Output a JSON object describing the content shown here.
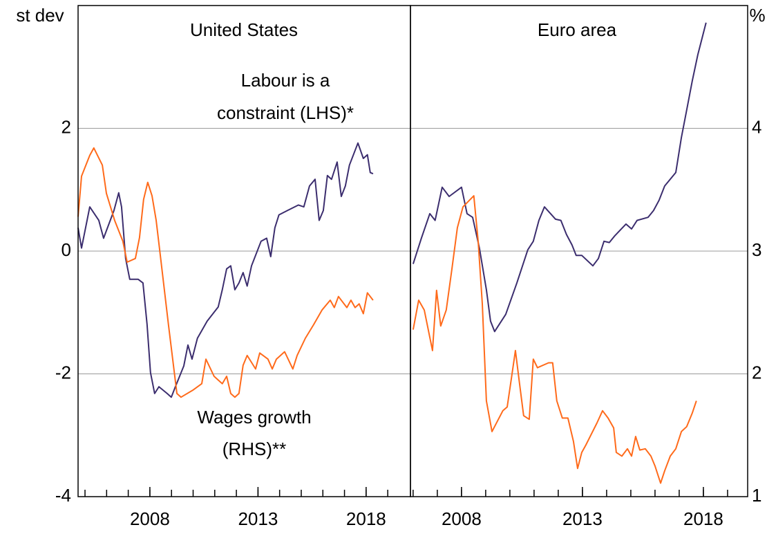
{
  "chart_data": [
    {
      "type": "line",
      "title": "United States",
      "ylabel": "st dev",
      "xlim": [
        2004.68,
        2020.05
      ],
      "xticks": [
        2008,
        2013,
        2018
      ],
      "xminorticks": [
        2005,
        2006,
        2007,
        2008,
        2009,
        2010,
        2011,
        2012,
        2013,
        2014,
        2015,
        2016,
        2017,
        2018,
        2019
      ],
      "ylim": [
        -4,
        4
      ],
      "yticks": [
        -4,
        -2,
        0,
        2
      ],
      "y2lim": [
        1,
        5
      ],
      "grid": true,
      "annotations": [
        "Labour is a",
        "constraint (LHS)*",
        "Wages growth",
        "(RHS)**"
      ],
      "series": [
        {
          "name": "Labour is a constraint (LHS)*",
          "color": "#3b2d6e",
          "axis": "y",
          "x": [
            2004.68,
            2004.84,
            2005.22,
            2005.64,
            2005.86,
            2006.34,
            2006.56,
            2006.69,
            2006.88,
            2007.07,
            2007.46,
            2007.68,
            2007.87,
            2008.03,
            2008.22,
            2008.42,
            2008.8,
            2008.99,
            2009.18,
            2009.57,
            2009.76,
            2009.95,
            2010.2,
            2010.65,
            2011.16,
            2011.35,
            2011.55,
            2011.74,
            2011.93,
            2012.12,
            2012.31,
            2012.5,
            2012.7,
            2013.14,
            2013.4,
            2013.59,
            2013.78,
            2013.97,
            2014.36,
            2014.87,
            2015.12,
            2015.38,
            2015.64,
            2015.83,
            2016.02,
            2016.21,
            2016.4,
            2016.66,
            2016.85,
            2017.04,
            2017.23,
            2017.62,
            2017.87,
            2018.06,
            2018.19,
            2018.32
          ],
          "values": [
            0.38,
            0.05,
            0.72,
            0.5,
            0.21,
            0.66,
            0.95,
            0.72,
            -0.12,
            -0.46,
            -0.46,
            -0.52,
            -1.19,
            -1.98,
            -2.32,
            -2.21,
            -2.32,
            -2.38,
            -2.21,
            -1.87,
            -1.53,
            -1.76,
            -1.42,
            -1.14,
            -0.91,
            -0.63,
            -0.29,
            -0.24,
            -0.63,
            -0.52,
            -0.35,
            -0.57,
            -0.24,
            0.16,
            0.21,
            -0.09,
            0.38,
            0.59,
            0.66,
            0.75,
            0.72,
            1.06,
            1.17,
            0.5,
            0.66,
            1.23,
            1.17,
            1.45,
            0.89,
            1.06,
            1.4,
            1.76,
            1.51,
            1.57,
            1.28,
            1.26
          ]
        },
        {
          "name": "Wages growth (RHS)**",
          "color": "#ff6a1a",
          "axis": "y2",
          "x": [
            2004.68,
            2004.84,
            2005.22,
            2005.41,
            2005.8,
            2005.99,
            2006.37,
            2006.75,
            2006.95,
            2007.33,
            2007.52,
            2007.71,
            2007.9,
            2008.1,
            2008.29,
            2008.48,
            2008.86,
            2009.25,
            2009.44,
            2010.01,
            2010.4,
            2010.59,
            2010.97,
            2011.35,
            2011.55,
            2011.74,
            2011.93,
            2012.12,
            2012.31,
            2012.5,
            2012.89,
            2013.08,
            2013.46,
            2013.66,
            2013.85,
            2014.23,
            2014.61,
            2014.81,
            2015.19,
            2015.57,
            2015.96,
            2016.34,
            2016.53,
            2016.72,
            2017.11,
            2017.3,
            2017.49,
            2017.68,
            2017.87,
            2018.06,
            2018.32
          ],
          "values": [
            3.28,
            3.61,
            3.78,
            3.84,
            3.7,
            3.47,
            3.25,
            3.08,
            2.91,
            2.94,
            3.11,
            3.42,
            3.56,
            3.45,
            3.25,
            2.97,
            2.4,
            1.84,
            1.81,
            1.87,
            1.92,
            2.12,
            1.98,
            1.92,
            1.98,
            1.84,
            1.81,
            1.84,
            2.07,
            2.15,
            2.04,
            2.17,
            2.12,
            2.04,
            2.12,
            2.18,
            2.04,
            2.15,
            2.29,
            2.4,
            2.52,
            2.6,
            2.54,
            2.63,
            2.54,
            2.6,
            2.54,
            2.57,
            2.49,
            2.66,
            2.6
          ]
        }
      ]
    },
    {
      "type": "line",
      "title": "Euro area",
      "y2label": "%",
      "xlim": [
        2005.89,
        2019.83
      ],
      "xticks": [
        2008,
        2013,
        2018
      ],
      "xminorticks": [
        2006,
        2007,
        2008,
        2009,
        2010,
        2011,
        2012,
        2013,
        2014,
        2015,
        2016,
        2017,
        2018,
        2019
      ],
      "ylim": [
        -4,
        4
      ],
      "y2lim": [
        1,
        5
      ],
      "y2ticks": [
        1,
        2,
        3,
        4
      ],
      "grid": true,
      "series": [
        {
          "name": "Labour is a constraint (LHS)*",
          "color": "#3b2d6e",
          "axis": "y",
          "x": [
            2006.0,
            2006.34,
            2006.69,
            2006.91,
            2007.2,
            2007.49,
            2008.0,
            2008.23,
            2008.46,
            2008.74,
            2009.03,
            2009.2,
            2009.37,
            2009.83,
            2010.29,
            2010.74,
            2010.97,
            2011.2,
            2011.43,
            2011.89,
            2012.11,
            2012.34,
            2012.57,
            2012.74,
            2012.97,
            2013.43,
            2013.66,
            2013.89,
            2014.11,
            2014.34,
            2014.8,
            2015.03,
            2015.26,
            2015.71,
            2015.94,
            2016.17,
            2016.4,
            2016.86,
            2017.09,
            2017.31,
            2017.54,
            2017.77,
            2018.11
          ],
          "values": [
            -0.21,
            0.21,
            0.61,
            0.5,
            1.04,
            0.89,
            1.04,
            0.61,
            0.55,
            0.05,
            -0.63,
            -1.14,
            -1.31,
            -1.03,
            -0.52,
            0.02,
            0.16,
            0.5,
            0.72,
            0.52,
            0.5,
            0.27,
            0.1,
            -0.07,
            -0.07,
            -0.24,
            -0.12,
            0.16,
            0.14,
            0.25,
            0.44,
            0.36,
            0.5,
            0.55,
            0.66,
            0.83,
            1.06,
            1.28,
            1.85,
            2.3,
            2.77,
            3.2,
            3.72
          ]
        },
        {
          "name": "Wages growth (RHS)**",
          "color": "#ff6a1a",
          "axis": "y2",
          "x": [
            2006.0,
            2006.23,
            2006.46,
            2006.8,
            2006.97,
            2007.14,
            2007.37,
            2007.6,
            2007.83,
            2008.06,
            2008.51,
            2008.69,
            2008.86,
            2009.03,
            2009.26,
            2009.71,
            2009.89,
            2010.06,
            2010.23,
            2010.4,
            2010.57,
            2010.8,
            2010.97,
            2011.14,
            2011.6,
            2011.77,
            2011.94,
            2012.17,
            2012.4,
            2012.63,
            2012.8,
            2012.97,
            2013.14,
            2013.6,
            2013.83,
            2014.06,
            2014.29,
            2014.4,
            2014.63,
            2014.86,
            2015.03,
            2015.2,
            2015.37,
            2015.6,
            2015.83,
            2016.0,
            2016.23,
            2016.4,
            2016.63,
            2016.86,
            2017.09,
            2017.31,
            2017.54,
            2017.71
          ],
          "values": [
            2.36,
            2.6,
            2.52,
            2.19,
            2.68,
            2.39,
            2.52,
            2.85,
            3.19,
            3.36,
            3.45,
            3.08,
            2.57,
            1.78,
            1.53,
            1.7,
            1.73,
            1.96,
            2.19,
            1.92,
            1.66,
            1.63,
            2.12,
            2.05,
            2.09,
            2.09,
            1.78,
            1.64,
            1.64,
            1.45,
            1.23,
            1.36,
            1.42,
            1.6,
            1.7,
            1.64,
            1.56,
            1.36,
            1.33,
            1.39,
            1.33,
            1.49,
            1.38,
            1.39,
            1.33,
            1.25,
            1.11,
            1.21,
            1.33,
            1.39,
            1.53,
            1.57,
            1.68,
            1.78
          ]
        }
      ]
    }
  ]
}
